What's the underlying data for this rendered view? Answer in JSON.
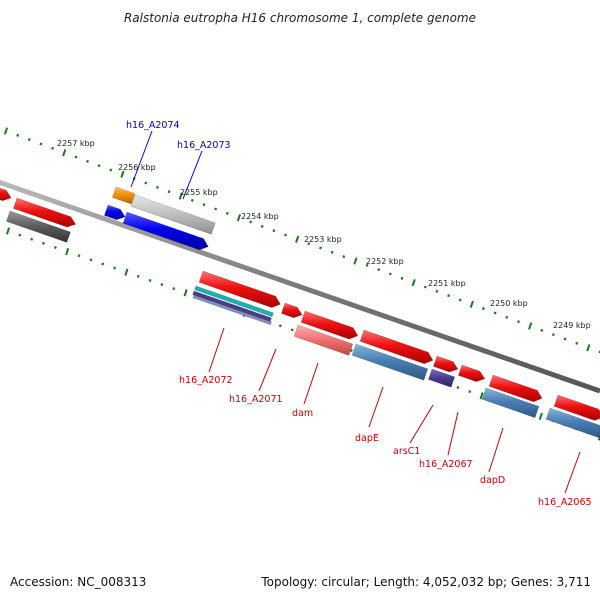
{
  "title": "Ralstonia eutropha H16 chromosome 1, complete genome",
  "footer": {
    "accession": "Accession: NC_008313",
    "stats": "Topology: circular; Length: 4,052,032 bp; Genes: 3,711"
  },
  "ticks": [
    "2257 kbp",
    "2256 kbp",
    "2255 kbp",
    "2254 kbp",
    "2253 kbp",
    "2252 kbp",
    "2251 kbp",
    "2250 kbp",
    "2249 kbp"
  ],
  "labels": {
    "h16_A2074": "h16_A2074",
    "h16_A2073": "h16_A2073",
    "h16_A2072": "h16_A2072",
    "h16_A2071": "h16_A2071",
    "dam": "dam",
    "dapE": "dapE",
    "arsC1": "arsC1",
    "h16_A2067": "h16_A2067",
    "dapD": "dapD",
    "h16_A2065": "h16_A2065"
  },
  "colors": {
    "backbone": "#777777",
    "tick": "#1a7a1a",
    "gene_red": "#ee1111",
    "gene_blue": "#0000ee",
    "gene_steel": "#4a7fb5",
    "gene_gray": "#888888",
    "gene_orange": "#f08c00",
    "gene_purple": "#4a3a8a",
    "gene_teal": "#19b0b0",
    "gene_pink": "#ee7070",
    "label_blue": "#0000cc",
    "label_red": "#cc0000"
  }
}
